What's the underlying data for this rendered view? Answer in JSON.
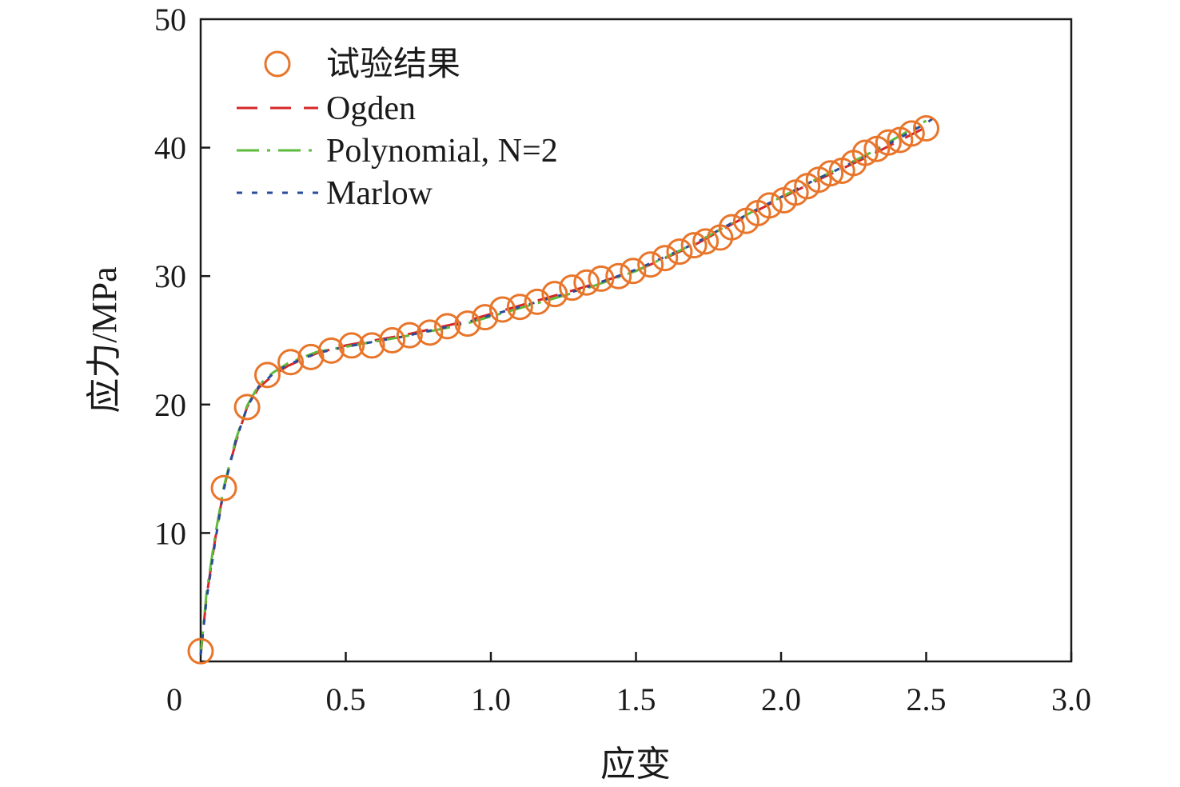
{
  "chart_data": {
    "type": "line",
    "xlabel": "应变",
    "ylabel": "应力/MPa",
    "xlim": [
      0,
      3.0
    ],
    "ylim": [
      0,
      50
    ],
    "x_ticks": [
      "0",
      "0.5",
      "1.0",
      "1.5",
      "2.0",
      "2.5",
      "3.0"
    ],
    "x_tick_values": [
      0,
      0.5,
      1.0,
      1.5,
      2.0,
      2.5,
      3.0
    ],
    "y_ticks": [
      "10",
      "20",
      "30",
      "40",
      "50"
    ],
    "y_tick_values": [
      10,
      20,
      30,
      40,
      50
    ],
    "legend_position": "top-left",
    "colors": {
      "experiment": "#E8752A",
      "ogden": "#D62728",
      "polynomial": "#5DBB3C",
      "marlow": "#2B4C9B",
      "axis": "#1a1a1a"
    },
    "series": [
      {
        "name": "试验结果",
        "style": "markers",
        "x": [
          0.0,
          0.08,
          0.16,
          0.23,
          0.31,
          0.38,
          0.45,
          0.52,
          0.59,
          0.66,
          0.72,
          0.79,
          0.85,
          0.92,
          0.98,
          1.04,
          1.1,
          1.16,
          1.22,
          1.28,
          1.33,
          1.38,
          1.44,
          1.49,
          1.55,
          1.6,
          1.65,
          1.7,
          1.74,
          1.79,
          1.83,
          1.88,
          1.92,
          1.96,
          2.01,
          2.05,
          2.09,
          2.13,
          2.17,
          2.21,
          2.25,
          2.29,
          2.33,
          2.37,
          2.41,
          2.45,
          2.5
        ],
        "y": [
          0.8,
          13.5,
          19.8,
          22.3,
          23.3,
          23.7,
          24.2,
          24.6,
          24.6,
          25.0,
          25.4,
          25.6,
          26.1,
          26.3,
          26.8,
          27.4,
          27.6,
          28.0,
          28.6,
          29.1,
          29.5,
          29.8,
          30.0,
          30.4,
          30.9,
          31.4,
          31.9,
          32.4,
          32.7,
          33.0,
          33.8,
          34.3,
          34.9,
          35.5,
          35.9,
          36.5,
          37.0,
          37.5,
          38.0,
          38.2,
          38.8,
          39.6,
          39.9,
          40.4,
          40.6,
          41.1,
          41.5
        ]
      },
      {
        "name": "Ogden",
        "style": "dashed",
        "x": [
          0.0,
          0.02,
          0.05,
          0.08,
          0.12,
          0.16,
          0.2,
          0.25,
          0.3,
          0.4,
          0.5,
          0.7,
          0.9,
          1.1,
          1.3,
          1.5,
          1.7,
          1.9,
          2.1,
          2.3,
          2.5
        ],
        "y": [
          0.5,
          5.0,
          9.5,
          13.5,
          17.0,
          19.8,
          21.3,
          22.3,
          23.0,
          24.0,
          24.6,
          25.4,
          26.4,
          27.7,
          29.0,
          30.4,
          32.4,
          34.9,
          37.2,
          39.3,
          41.6
        ]
      },
      {
        "name": "Polynomial, N=2",
        "style": "dashdot",
        "x": [
          0.0,
          0.02,
          0.05,
          0.08,
          0.12,
          0.16,
          0.2,
          0.25,
          0.3,
          0.4,
          0.5,
          0.7,
          0.9,
          1.1,
          1.3,
          1.5,
          1.7,
          1.9,
          2.1,
          2.3,
          2.5
        ],
        "y": [
          0.6,
          5.3,
          9.8,
          13.6,
          17.2,
          19.9,
          21.5,
          22.5,
          23.2,
          24.1,
          24.5,
          25.3,
          26.2,
          27.5,
          28.8,
          30.4,
          32.5,
          35.0,
          37.3,
          39.5,
          42.1
        ]
      },
      {
        "name": "Marlow",
        "style": "dotted",
        "x": [
          0.0,
          0.02,
          0.05,
          0.08,
          0.12,
          0.16,
          0.2,
          0.25,
          0.3,
          0.4,
          0.5,
          0.7,
          0.9,
          1.1,
          1.3,
          1.5,
          1.7,
          1.9,
          2.1,
          2.3,
          2.5,
          2.55
        ],
        "y": [
          0.5,
          4.8,
          9.3,
          13.4,
          17.1,
          19.8,
          21.4,
          22.4,
          23.1,
          24.0,
          24.5,
          25.3,
          26.3,
          27.6,
          28.9,
          30.5,
          32.5,
          35.0,
          37.3,
          39.4,
          41.9,
          42.7
        ]
      }
    ]
  }
}
